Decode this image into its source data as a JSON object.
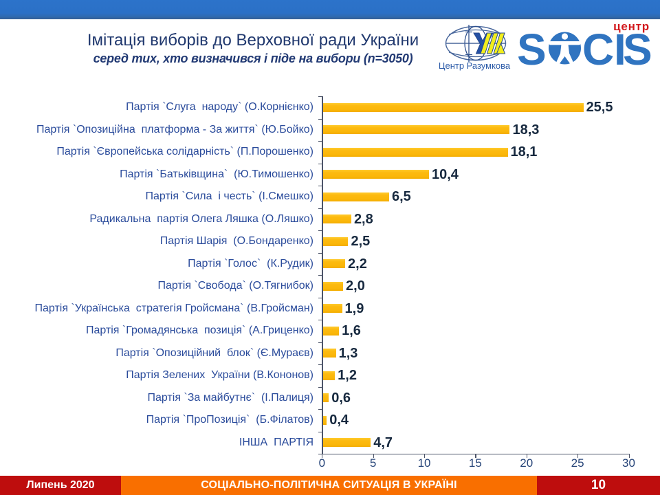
{
  "slide": {
    "title": "Імітація виборів до Верховної ради України",
    "subtitle": "серед тих, хто визначився і піде на вибори (n=3050)",
    "logos": {
      "razumkov": {
        "caption": "Центр Разумкова"
      },
      "socis": {
        "letter_s1": "S",
        "letters_cis": "CIS",
        "center_label": "центр"
      }
    },
    "footer": {
      "date": "Липень 2020",
      "series_title": "СОЦІАЛЬНО-ПОЛІТИЧНА  СИТУАЦІЯ В УКРАЇНІ",
      "page_number": "10"
    }
  },
  "chart_data": {
    "type": "bar",
    "orientation": "horizontal",
    "categories": [
      "Партія `Слуга  народу` (О.Корнієнко)",
      "Партія `Опозиційна  платформа - За життя` (Ю.Бойко)",
      "Партія `Європейська солідарність` (П.Порошенко)",
      "Партія `Батьківщина`  (Ю.Тимошенко)",
      "Партія `Сила  і честь` (І.Смешко)",
      "Радикальна  партія Олега Ляшка (О.Ляшко)",
      "Партія Шарія  (О.Бондаренко)",
      "Партія `Голос`  (К.Рудик)",
      "Партія `Свобода` (О.Тягнибок)",
      "Партія `Українська  стратегія Гройсмана` (В.Гройсман)",
      "Партія `Громадянська  позиція` (А.Гриценко)",
      "Партія `Опозиційний  блок` (Є.Мураєв)",
      "Партія Зелених  України (В.Кононов)",
      "Партія `За майбутнє`  (І.Палиця)",
      "Партія `ПроПозиція`  (Б.Філатов)",
      "ІНША  ПАРТІЯ"
    ],
    "values": [
      25.5,
      18.3,
      18.1,
      10.4,
      6.5,
      2.8,
      2.5,
      2.2,
      2.0,
      1.9,
      1.6,
      1.3,
      1.2,
      0.6,
      0.4,
      4.7
    ],
    "value_labels": [
      "25,5",
      "18,3",
      "18,1",
      "10,4",
      "6,5",
      "2,8",
      "2,5",
      "2,2",
      "2,0",
      "1,9",
      "1,6",
      "1,3",
      "1,2",
      "0,6",
      "0,4",
      "4,7"
    ],
    "x_ticks": [
      "0",
      "5",
      "10",
      "15",
      "20",
      "25",
      "30"
    ],
    "xlim": [
      0,
      30
    ],
    "grid": false,
    "legend": false,
    "bar_color": "#fbb70a",
    "label_color": "#2a4b9b",
    "value_label_color": "#17293f",
    "axis_color": "#4d5569"
  }
}
